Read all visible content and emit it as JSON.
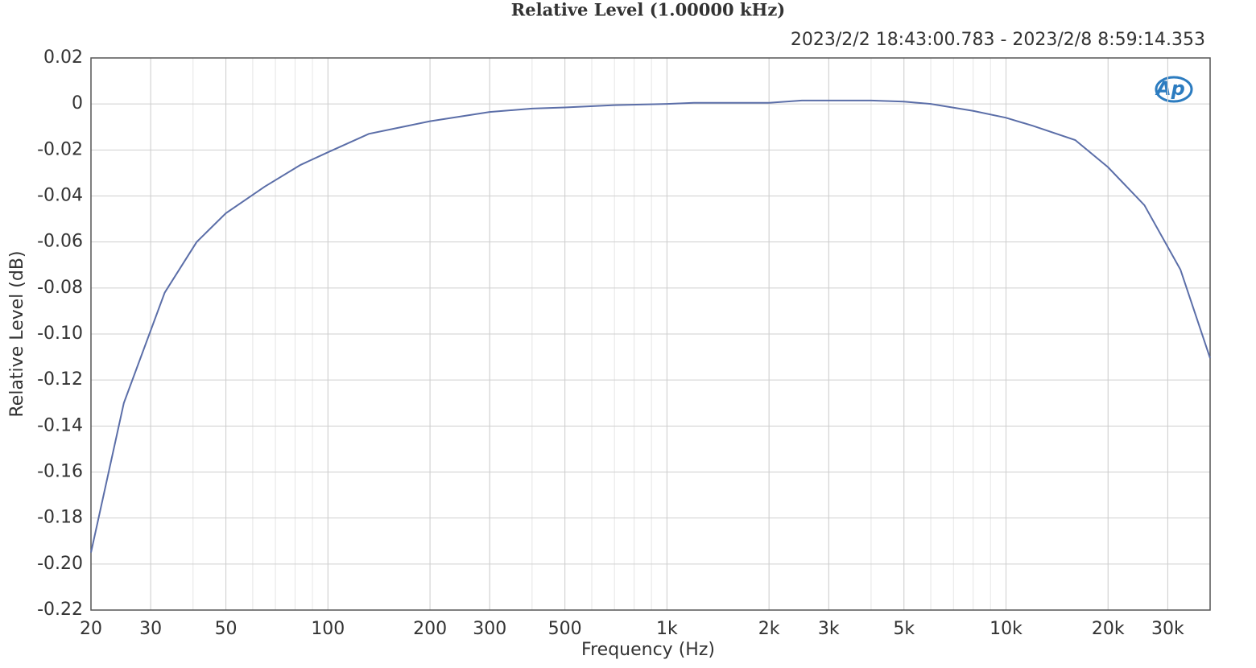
{
  "chart_data": {
    "type": "line",
    "title": "Relative Level (1.00000 kHz)",
    "subtitle": "2023/2/2 18:43:00.783 - 2023/2/8 8:59:14.353",
    "logo": "Ap",
    "x_label": "Frequency (Hz)",
    "y_label": "Relative Level (dB)",
    "log_x": true,
    "grid": true,
    "xlim": [
      20,
      40000
    ],
    "ylim": [
      -0.22,
      0.02
    ],
    "xticks": [
      20,
      30,
      50,
      100,
      200,
      300,
      500,
      {
        "value": 1000,
        "label": "1k"
      },
      {
        "value": 2000,
        "label": "2k"
      },
      {
        "value": 3000,
        "label": "3k"
      },
      {
        "value": 5000,
        "label": "5k"
      },
      {
        "value": 10000,
        "label": "10k"
      },
      {
        "value": 20000,
        "label": "20k"
      },
      {
        "value": 30000,
        "label": "30k"
      }
    ],
    "yticks": [
      0.02,
      0,
      -0.02,
      -0.04,
      -0.06,
      -0.08,
      {
        "value": -0.1,
        "label": "-0.10"
      },
      -0.12,
      -0.14,
      -0.16,
      -0.18,
      {
        "value": -0.2,
        "label": "-0.20"
      },
      -0.22
    ],
    "x": [
      20,
      25,
      33,
      41,
      50,
      65,
      83,
      100,
      132,
      200,
      300,
      400,
      500,
      700,
      1000,
      1200,
      2000,
      2500,
      4000,
      5000,
      6000,
      8000,
      10000,
      12000,
      16000,
      20000,
      25600,
      32700,
      40000
    ],
    "series": [
      {
        "name": "Relative Level",
        "color": "#5b6ea8",
        "values": [
          -0.195,
          -0.13,
          -0.082,
          -0.06,
          -0.0475,
          -0.036,
          -0.0265,
          -0.021,
          -0.013,
          -0.0075,
          -0.0035,
          -0.002,
          -0.0015,
          -0.0005,
          0,
          0.0005,
          0.0005,
          0.0015,
          0.0015,
          0.001,
          0,
          -0.003,
          -0.006,
          -0.0095,
          -0.0157,
          -0.0275,
          -0.044,
          -0.072,
          -0.1105
        ]
      }
    ]
  }
}
